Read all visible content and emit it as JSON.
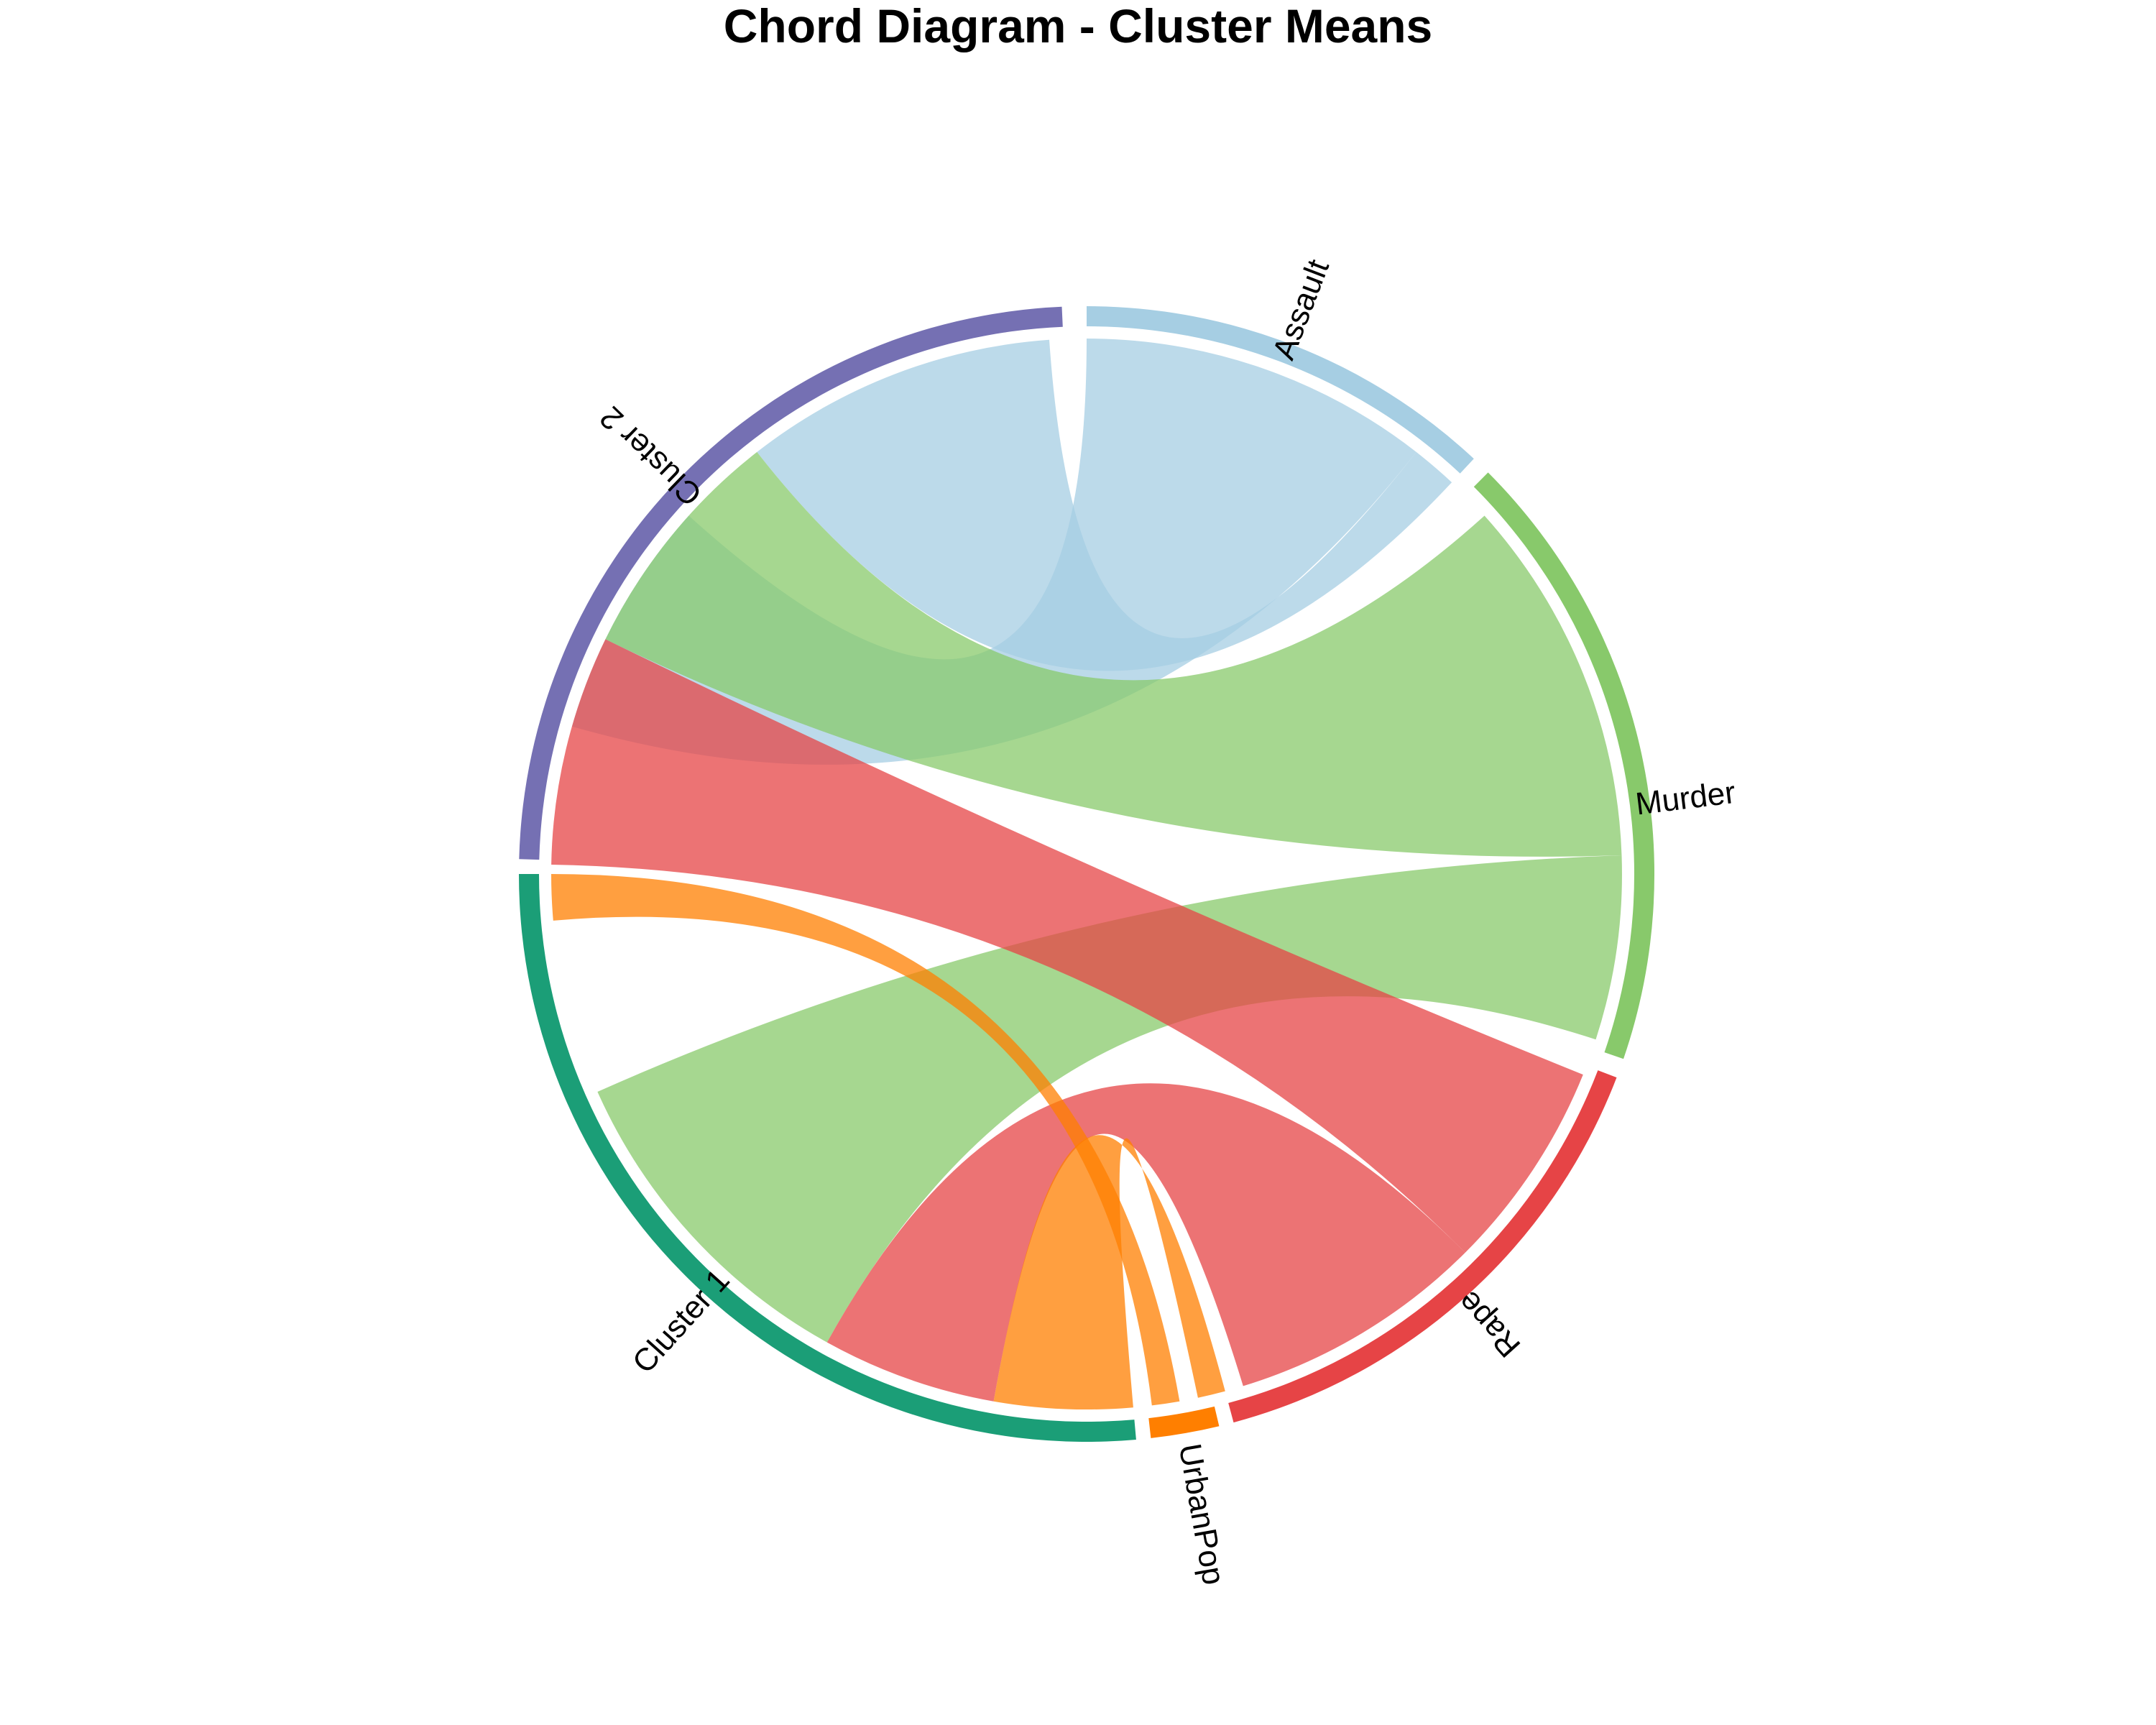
{
  "title": "Chord Diagram - Cluster Means",
  "chart_data": {
    "type": "chord",
    "sectors": [
      {
        "name": "Assault",
        "color": "#a6cee3"
      },
      {
        "name": "Murder",
        "color": "#88c96b"
      },
      {
        "name": "Rape",
        "color": "#e64446"
      },
      {
        "name": "UrbanPop",
        "color": "#ff7f00"
      },
      {
        "name": "Cluster 1",
        "color": "#1b9e77"
      },
      {
        "name": "Cluster 2",
        "color": "#7570b3"
      }
    ],
    "links": [
      {
        "from": "Assault",
        "to": "Cluster 1",
        "color": "#a6cee3"
      },
      {
        "from": "Assault",
        "to": "Cluster 2",
        "color": "#a6cee3"
      },
      {
        "from": "Murder",
        "to": "Cluster 1",
        "color": "#88c96b"
      },
      {
        "from": "Murder",
        "to": "Cluster 2",
        "color": "#88c96b"
      },
      {
        "from": "Rape",
        "to": "Cluster 1",
        "color": "#e64446"
      },
      {
        "from": "Rape",
        "to": "Cluster 2",
        "color": "#e64446"
      },
      {
        "from": "UrbanPop",
        "to": "Cluster 1",
        "color": "#ff7f00"
      },
      {
        "from": "UrbanPop",
        "to": "Cluster 2",
        "color": "#ff7f00"
      }
    ]
  }
}
